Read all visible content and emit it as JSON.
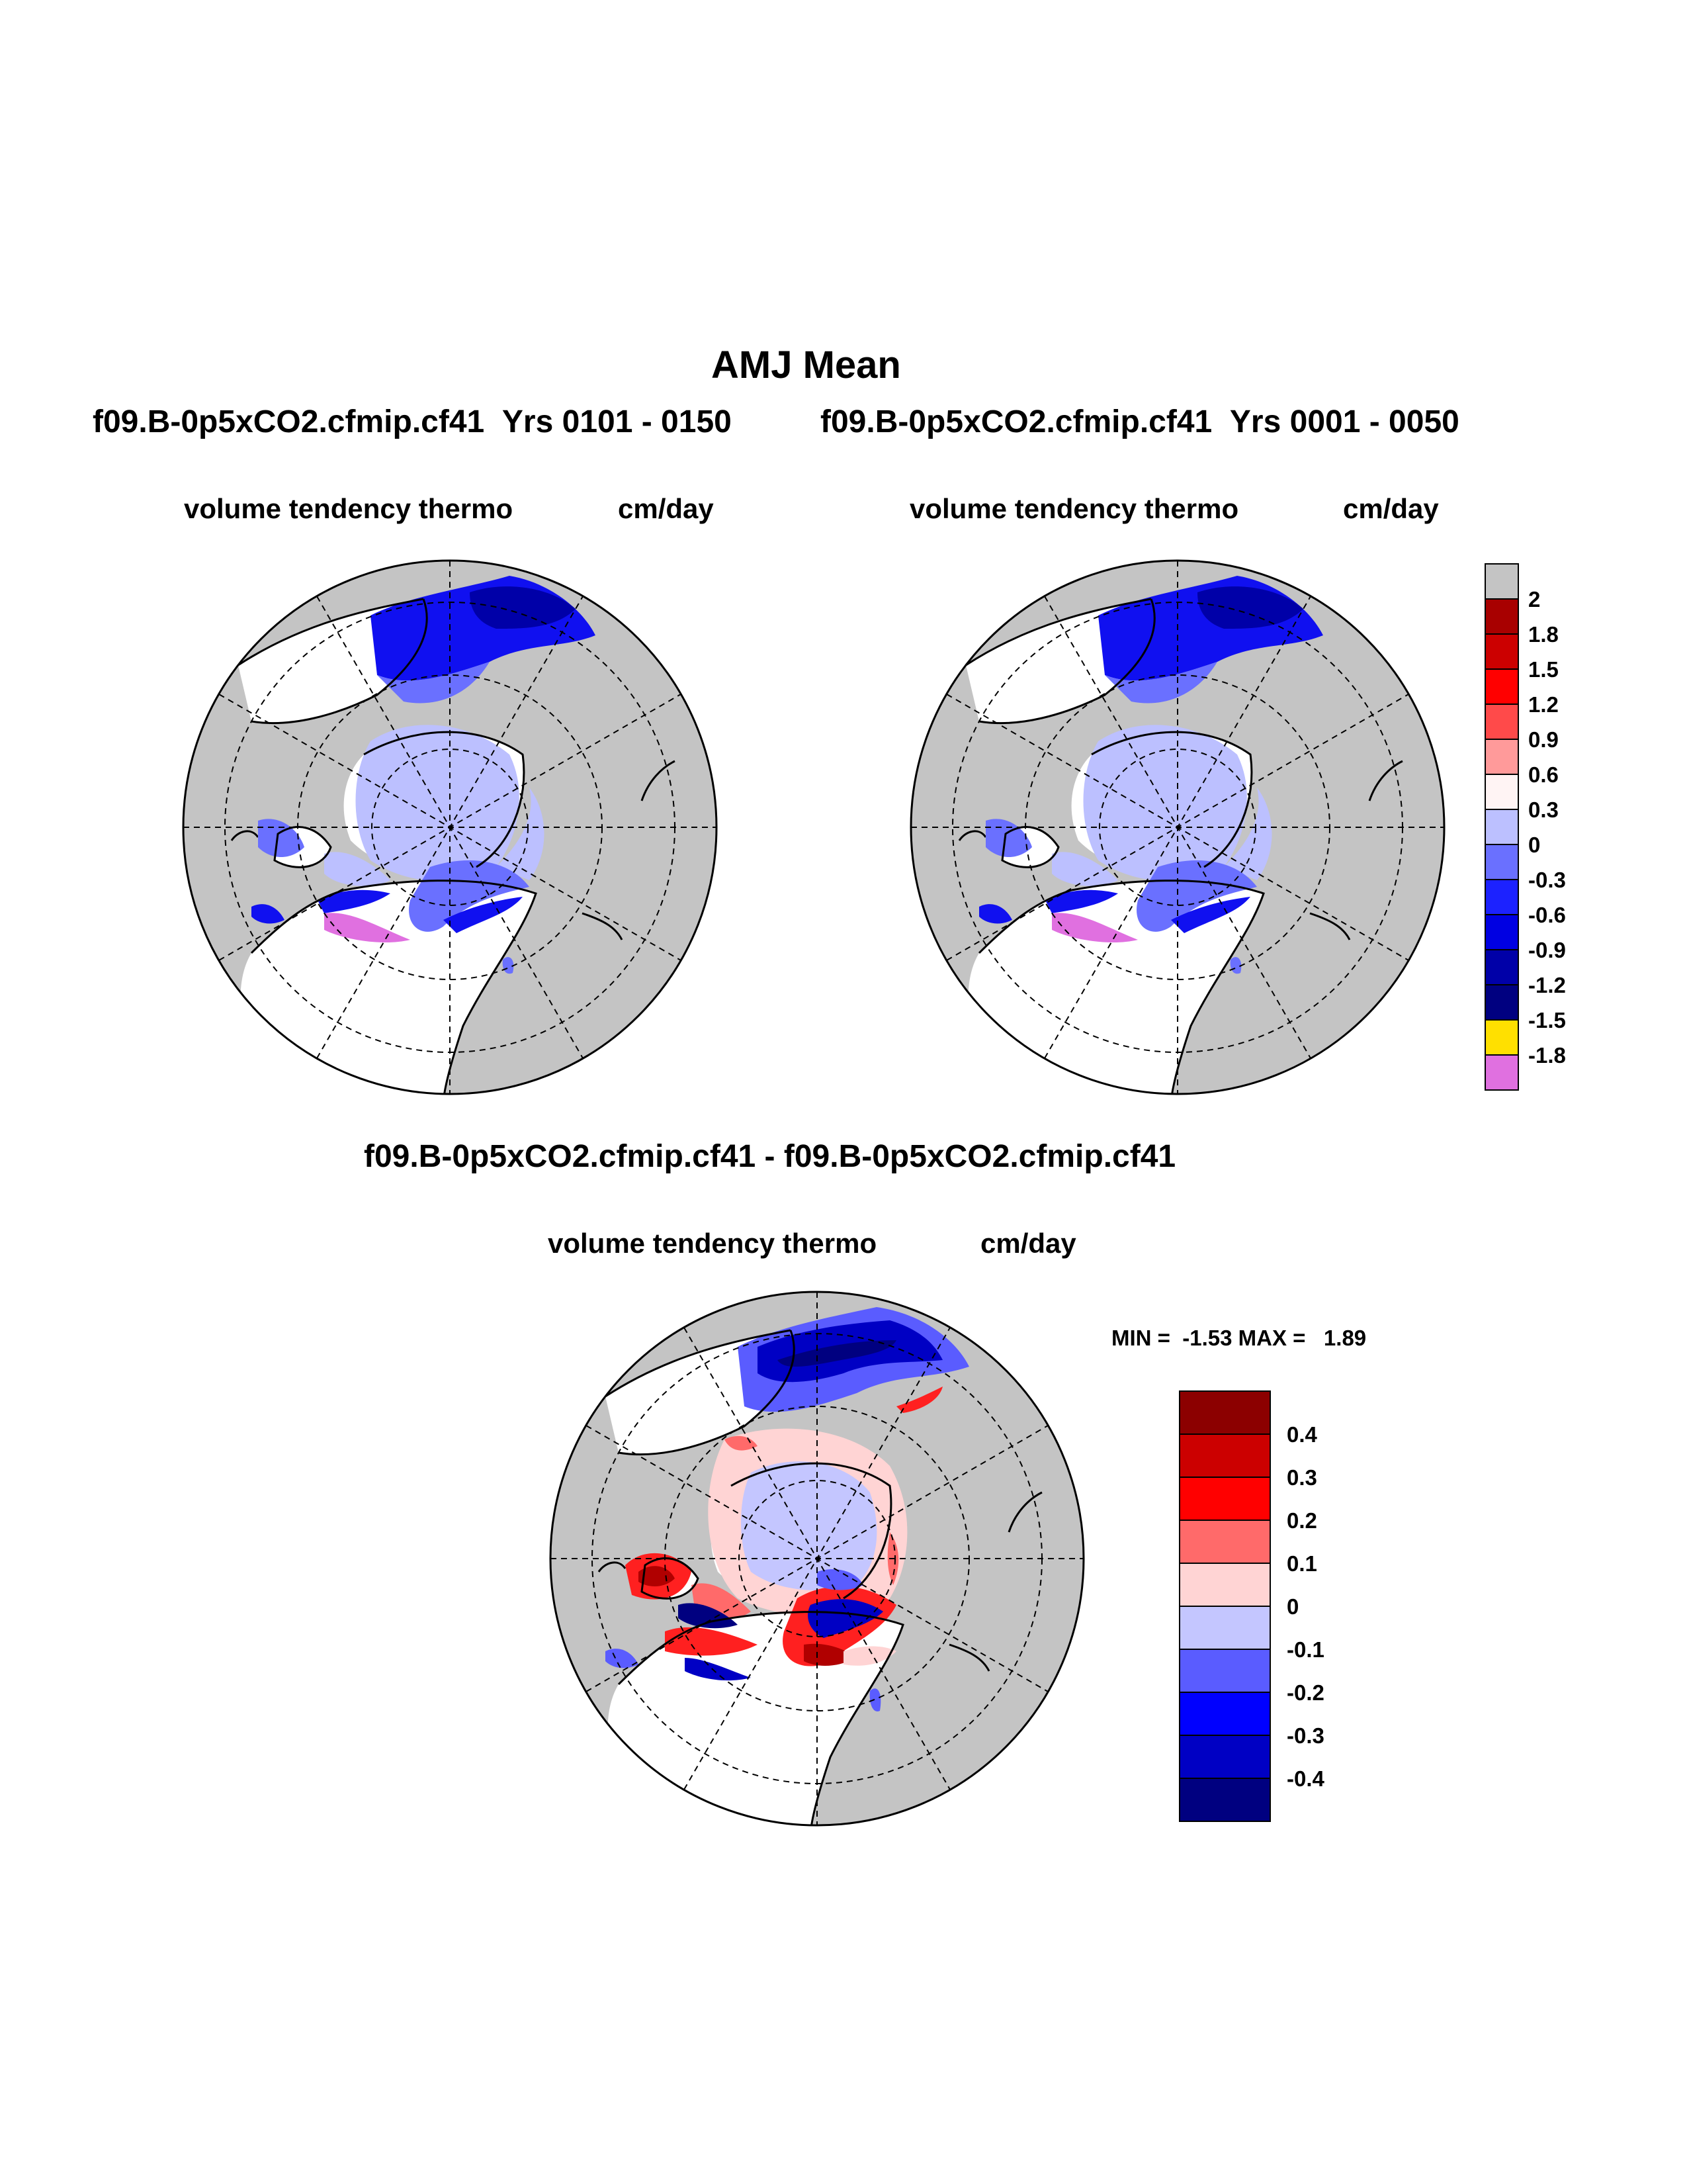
{
  "header": {
    "title": "AMJ Mean",
    "case_a": "f09.B-0p5xCO2.cfmip.cf41",
    "years_a": "Yrs 0101 - 0150",
    "case_b": "f09.B-0p5xCO2.cfmip.cf41",
    "years_b": "Yrs 0001 - 0050"
  },
  "panels": {
    "left": {
      "variable": "volume tendency thermo",
      "units": "cm/day"
    },
    "right": {
      "variable": "volume tendency thermo",
      "units": "cm/day"
    },
    "diff": {
      "title": "f09.B-0p5xCO2.cfmip.cf41 - f09.B-0p5xCO2.cfmip.cf41",
      "variable": "volume tendency thermo",
      "units": "cm/day",
      "stats": "MIN =  -1.53 MAX =   1.89"
    }
  },
  "colorbar_top": {
    "labels": [
      "2",
      "1.8",
      "1.5",
      "1.2",
      "0.9",
      "0.6",
      "0.3",
      "0",
      "-0.3",
      "-0.6",
      "-0.9",
      "-1.2",
      "-1.5",
      "-1.8"
    ],
    "colors": [
      "#c4c4c4",
      "#a80000",
      "#cc0000",
      "#ff0000",
      "#ff4a4a",
      "#ff9a9a",
      "#fff4f4",
      "#bcc0ff",
      "#6a70ff",
      "#1c22ff",
      "#0000e2",
      "#0000a8",
      "#000080",
      "#ffe000",
      "#e070e0"
    ]
  },
  "colorbar_diff": {
    "labels": [
      "0.4",
      "0.3",
      "0.2",
      "0.1",
      "0",
      "-0.1",
      "-0.2",
      "-0.3",
      "-0.4"
    ],
    "colors": [
      "#8c0000",
      "#cc0000",
      "#ff0000",
      "#ff6a6a",
      "#ffd4d4",
      "#c4c6ff",
      "#5a5cff",
      "#0000ff",
      "#0000c4",
      "#000080"
    ]
  },
  "colors": {
    "land": "#c4c4c4",
    "ocean": "#ffffff",
    "ice_light": "#bcc0ff",
    "ice_mid": "#6a70ff",
    "ice_blue": "#1010f0",
    "ice_dark": "#0000a8",
    "pink": "#e070e0",
    "red_light": "#ffd4d4",
    "red": "#ff2020",
    "red_dark": "#b00000"
  }
}
